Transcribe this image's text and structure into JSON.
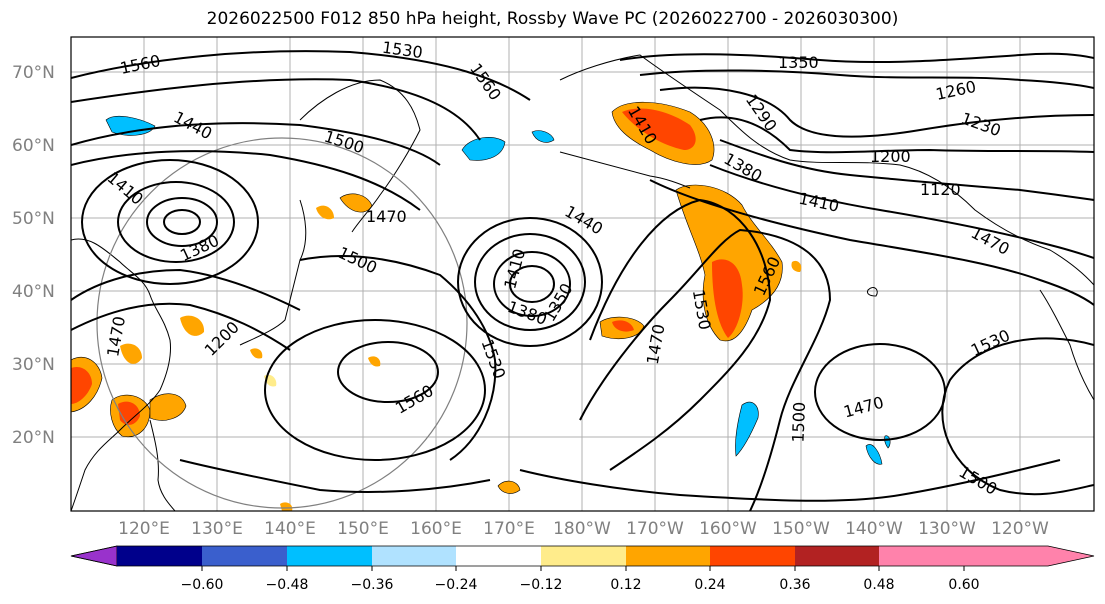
{
  "title": "2026022500 F012 850 hPa height, Rossby Wave PC (2026022700 - 2026030300)",
  "lat_labels": [
    "70°N",
    "60°N",
    "50°N",
    "40°N",
    "30°N",
    "20°N"
  ],
  "lon_labels": [
    "120°E",
    "130°E",
    "140°E",
    "150°E",
    "160°E",
    "170°E",
    "180°W",
    "170°W",
    "160°W",
    "150°W",
    "140°W",
    "130°W",
    "120°W"
  ],
  "contour_labels": [
    "1560",
    "1530",
    "1560",
    "1350",
    "1260",
    "1440",
    "1500",
    "1410",
    "1290",
    "1230",
    "1200",
    "1410",
    "1380",
    "1380",
    "1470",
    "1120",
    "1410",
    "1470",
    "1500",
    "1440",
    "1410",
    "1350",
    "1380",
    "1530",
    "1560",
    "1470",
    "1200",
    "1530",
    "1560",
    "1530",
    "1470",
    "1500",
    "1500",
    "1470"
  ],
  "colorbar": {
    "ticks": [
      "−0.60",
      "−0.48",
      "−0.36",
      "−0.24",
      "−0.12",
      "0.12",
      "0.24",
      "0.36",
      "0.48",
      "0.60"
    ],
    "colors": [
      "#9932cc",
      "#00008b",
      "#3a5fcd",
      "#00bfff",
      "#b0e2ff",
      "#ffffff",
      "#ffec8b",
      "#ffa500",
      "#ff4500",
      "#b22222",
      "#ff82ab"
    ]
  }
}
